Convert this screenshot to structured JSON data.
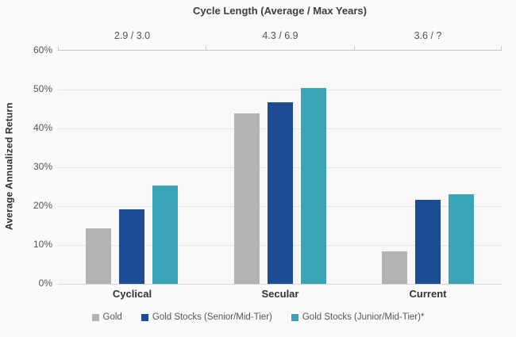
{
  "chart_data": {
    "type": "bar",
    "title": "Cycle Length (Average / Max Years)",
    "ylabel": "Average Annualized Return",
    "categories": [
      "Cyclical",
      "Secular",
      "Current"
    ],
    "cycle_lengths": [
      "2.9 / 3.0",
      "4.3 / 6.9",
      "3.6 / ?"
    ],
    "series": [
      {
        "name": "Gold",
        "color": "#b3b3b3",
        "values": [
          14.2,
          43.8,
          8.4
        ]
      },
      {
        "name": "Gold Stocks (Senior/Mid-Tier)",
        "color": "#1d4b94",
        "values": [
          19.2,
          46.8,
          21.6
        ]
      },
      {
        "name": "Gold Stocks (Junior/Mid-Tier)*",
        "color": "#3ba3b6",
        "values": [
          25.3,
          50.5,
          23.0
        ]
      }
    ],
    "ylim": [
      0,
      60
    ],
    "ytick_step": 10,
    "ytick_labels": [
      "0%",
      "10%",
      "20%",
      "30%",
      "40%",
      "50%",
      "60%"
    ],
    "grid": true,
    "legend_position": "bottom"
  },
  "colors": {
    "background": "#fafafa",
    "axis_line": "#c9c9c9",
    "gridline": "#e6e6e6"
  }
}
